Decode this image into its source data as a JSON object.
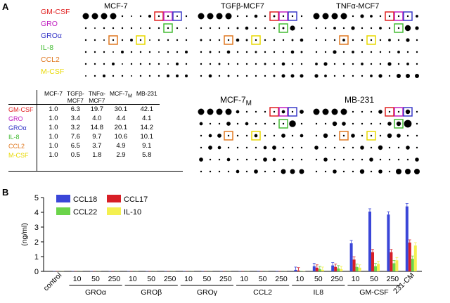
{
  "panel_a_label": "A",
  "panel_b_label": "B",
  "cytokines": [
    {
      "name": "GM-CSF",
      "color": "#e02020"
    },
    {
      "name": "GRO",
      "color": "#c020c0"
    },
    {
      "name": "GROα",
      "color": "#3a3ac8"
    },
    {
      "name": "IL-8",
      "color": "#44bb33"
    },
    {
      "name": "CCL2",
      "color": "#e07820"
    },
    {
      "name": "M-CSF",
      "color": "#e8d800"
    }
  ],
  "arrays": [
    {
      "title": "MCF-7",
      "sub": ""
    },
    {
      "title": "TGFβ-MCF7",
      "sub": ""
    },
    {
      "title": "TNFα-MCF7",
      "sub": ""
    },
    {
      "title": "MCF-7",
      "sub": "M"
    },
    {
      "title": "MB-231",
      "sub": ""
    }
  ],
  "fold_table": {
    "columns": [
      {
        "main": "MCF-7",
        "sub": ""
      },
      {
        "main": "TGFβ-",
        "line2": "MCF7",
        "sub": ""
      },
      {
        "main": "TNFα-",
        "line2": "MCF7",
        "sub": ""
      },
      {
        "main": "MCF-7",
        "sub": "M"
      },
      {
        "main": "MB-231",
        "sub": ""
      }
    ],
    "rows": [
      {
        "label": "GM-CSF",
        "color": "#e02020",
        "values": [
          "1.0",
          "6.3",
          "19.7",
          "30.1",
          "42.1"
        ]
      },
      {
        "label": "GRO",
        "color": "#c020c0",
        "values": [
          "1.0",
          "3.4",
          "4.0",
          "4.4",
          "4.1"
        ]
      },
      {
        "label": "GROα",
        "color": "#3a3ac8",
        "values": [
          "1.0",
          "3.2",
          "14.8",
          "20.1",
          "14.2"
        ]
      },
      {
        "label": "IL-8",
        "color": "#44bb33",
        "values": [
          "1.0",
          "7.6",
          "9.7",
          "10.6",
          "10.1"
        ]
      },
      {
        "label": "CCL2",
        "color": "#e07820",
        "values": [
          "1.0",
          "6.5",
          "3.7",
          "4.9",
          "9.1"
        ]
      },
      {
        "label": "M-CSF",
        "color": "#e8d800",
        "values": [
          "1.0",
          "0.5",
          "1.8",
          "2.9",
          "5.8"
        ]
      }
    ]
  },
  "chart_data": {
    "type": "bar",
    "ylabel": "(ng/ml)",
    "ylim": [
      0,
      5
    ],
    "yticks": [
      0,
      1,
      2,
      3,
      4,
      5
    ],
    "legend": "top-left",
    "series": [
      {
        "name": "CCL18",
        "color": "#3a46d8"
      },
      {
        "name": "CCL17",
        "color": "#d81f26"
      },
      {
        "name": "CCL22",
        "color": "#6bd44a"
      },
      {
        "name": "IL-10",
        "color": "#f4f050"
      }
    ],
    "groups": [
      {
        "label": "control",
        "conditions": [
          {
            "conc": "",
            "values": [
              0.02,
              0.02,
              0.01,
              0.01
            ]
          }
        ]
      },
      {
        "label": "GROα",
        "conditions": [
          {
            "conc": "10",
            "values": [
              0.02,
              0.02,
              0.01,
              0.01
            ]
          },
          {
            "conc": "50",
            "values": [
              0.02,
              0.02,
              0.01,
              0.01
            ]
          },
          {
            "conc": "250",
            "values": [
              0.02,
              0.02,
              0.01,
              0.01
            ]
          }
        ]
      },
      {
        "label": "GROβ",
        "conditions": [
          {
            "conc": "10",
            "values": [
              0.02,
              0.02,
              0.01,
              0.01
            ]
          },
          {
            "conc": "50",
            "values": [
              0.02,
              0.02,
              0.01,
              0.01
            ]
          },
          {
            "conc": "250",
            "values": [
              0.02,
              0.02,
              0.01,
              0.01
            ]
          }
        ]
      },
      {
        "label": "GROγ",
        "conditions": [
          {
            "conc": "10",
            "values": [
              0.02,
              0.02,
              0.01,
              0.01
            ]
          },
          {
            "conc": "50",
            "values": [
              0.02,
              0.02,
              0.01,
              0.01
            ]
          },
          {
            "conc": "250",
            "values": [
              0.02,
              0.02,
              0.01,
              0.01
            ]
          }
        ]
      },
      {
        "label": "CCL2",
        "conditions": [
          {
            "conc": "10",
            "values": [
              0.02,
              0.02,
              0.01,
              0.01
            ]
          },
          {
            "conc": "50",
            "values": [
              0.03,
              0.02,
              0.01,
              0.01
            ]
          },
          {
            "conc": "250",
            "values": [
              0.03,
              0.02,
              0.01,
              0.01
            ]
          }
        ]
      },
      {
        "label": "IL8",
        "conditions": [
          {
            "conc": "10",
            "values": [
              0.1,
              0.06,
              0.03,
              0.02
            ]
          },
          {
            "conc": "50",
            "values": [
              0.35,
              0.25,
              0.15,
              0.1
            ]
          },
          {
            "conc": "250",
            "values": [
              0.4,
              0.3,
              0.2,
              0.15
            ]
          }
        ]
      },
      {
        "label": "GM-CSF",
        "conditions": [
          {
            "conc": "10",
            "values": [
              1.9,
              0.8,
              0.3,
              0.25
            ]
          },
          {
            "conc": "50",
            "values": [
              4.05,
              1.3,
              0.35,
              0.5
            ]
          },
          {
            "conc": "250",
            "values": [
              3.85,
              1.3,
              0.55,
              0.75
            ]
          }
        ]
      },
      {
        "label": "231-CM",
        "conditions": [
          {
            "conc": "",
            "values": [
              4.4,
              1.95,
              0.85,
              1.75
            ]
          }
        ]
      }
    ]
  }
}
